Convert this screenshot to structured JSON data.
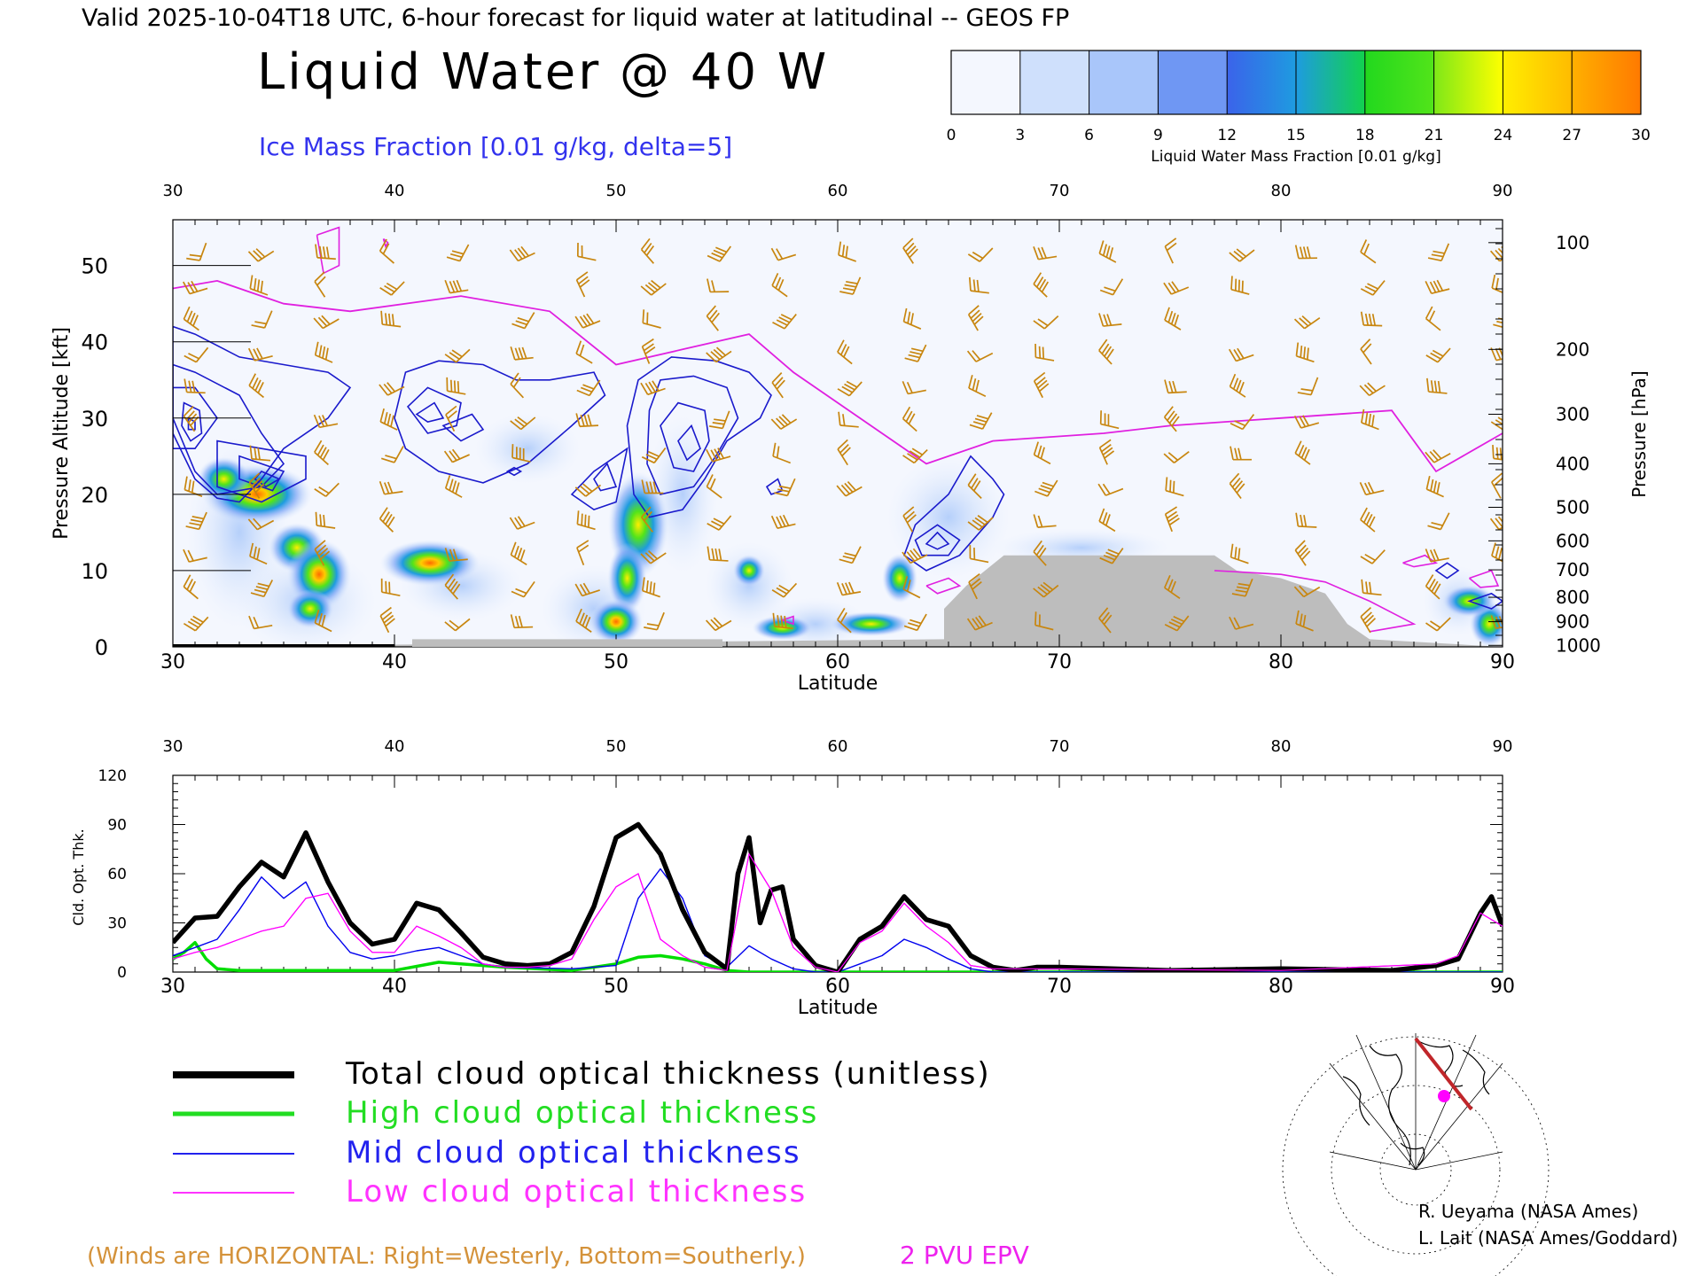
{
  "header": {
    "valid_line": "Valid 2025-10-04T18 UTC, 6-hour forecast for liquid water at latitudinal -- GEOS FP",
    "title": "Liquid Water @ 40 W",
    "subtitle": "Ice Mass Fraction [0.01 g/kg, delta=5]"
  },
  "colorbar": {
    "label": "Liquid Water Mass Fraction [0.01 g/kg]",
    "ticks": [
      "0",
      "3",
      "6",
      "9",
      "12",
      "15",
      "18",
      "21",
      "24",
      "27",
      "30"
    ],
    "colors": [
      "#f2f6fe",
      "#d2e2fc",
      "#aecbfa",
      "#7aa5f6",
      "#3b63ea",
      "#1e9be0",
      "#12d24e",
      "#52e41a",
      "#ffff00",
      "#ffcc00",
      "#ff9900",
      "#ff6a00",
      "#ff1c00"
    ]
  },
  "colors": {
    "ice_contour": "#1a1acc",
    "epv": "#e020e0",
    "wind_barb": "#c8860f",
    "terrain": "#bdbdbd",
    "total": "#000000",
    "high": "#00dd00",
    "mid": "#0000ee",
    "low": "#ff00ff"
  },
  "top_panel": {
    "xlabel": "Latitude",
    "ylabel_left": "Pressure Altitude [kft]",
    "ylabel_right": "Pressure [hPa]",
    "x_ticks": [
      "30",
      "40",
      "50",
      "60",
      "70",
      "80",
      "90"
    ],
    "y_ticks": [
      "0",
      "10",
      "20",
      "30",
      "40",
      "50"
    ],
    "p_ticks": [
      "100",
      "200",
      "300",
      "400",
      "500",
      "600",
      "700",
      "800",
      "900",
      "1000"
    ]
  },
  "chart_data": [
    {
      "type": "heatmap",
      "title": "Liquid Water @ 40 W",
      "subtitle": "Ice Mass Fraction [0.01 g/kg, delta=5]",
      "xlabel": "Latitude",
      "ylabel": "Pressure Altitude [kft]",
      "ylabel_right": "Pressure [hPa]",
      "xlim": [
        30,
        90
      ],
      "ylim": [
        0,
        56
      ],
      "colorbar_range": [
        0,
        30
      ],
      "liquid_water_maxima": [
        {
          "lat": 34.0,
          "alt_kft": 20,
          "value": 24
        },
        {
          "lat": 36.5,
          "alt_kft": 10,
          "value": 27
        },
        {
          "lat": 41.5,
          "alt_kft": 11,
          "value": 29
        },
        {
          "lat": 51.0,
          "alt_kft": 15,
          "value": 19
        },
        {
          "lat": 50.0,
          "alt_kft": 3,
          "value": 24
        },
        {
          "lat": 56.0,
          "alt_kft": 10,
          "value": 16
        },
        {
          "lat": 62.0,
          "alt_kft": 9,
          "value": 17
        },
        {
          "lat": 89.5,
          "alt_kft": 3,
          "value": 16
        }
      ],
      "epv_2pvu_kft": [
        {
          "lat": 30,
          "alt": 47
        },
        {
          "lat": 32,
          "alt": 48
        },
        {
          "lat": 35,
          "alt": 45
        },
        {
          "lat": 38,
          "alt": 44
        },
        {
          "lat": 43,
          "alt": 46
        },
        {
          "lat": 47,
          "alt": 44
        },
        {
          "lat": 50,
          "alt": 37
        },
        {
          "lat": 53,
          "alt": 39
        },
        {
          "lat": 56,
          "alt": 41
        },
        {
          "lat": 58,
          "alt": 36
        },
        {
          "lat": 62,
          "alt": 28
        },
        {
          "lat": 64,
          "alt": 24
        },
        {
          "lat": 67,
          "alt": 27
        },
        {
          "lat": 72,
          "alt": 28
        },
        {
          "lat": 75,
          "alt": 29
        },
        {
          "lat": 80,
          "alt": 30
        },
        {
          "lat": 85,
          "alt": 31
        },
        {
          "lat": 87,
          "alt": 23
        },
        {
          "lat": 90,
          "alt": 28
        }
      ],
      "terrain_kft": [
        {
          "lat": 30,
          "alt": 0
        },
        {
          "lat": 64.8,
          "alt": 1
        },
        {
          "lat": 64.8,
          "alt": 5
        },
        {
          "lat": 65.8,
          "alt": 8
        },
        {
          "lat": 67.5,
          "alt": 12
        },
        {
          "lat": 77,
          "alt": 12
        },
        {
          "lat": 78,
          "alt": 10
        },
        {
          "lat": 80,
          "alt": 9
        },
        {
          "lat": 82,
          "alt": 7
        },
        {
          "lat": 83,
          "alt": 3
        },
        {
          "lat": 84,
          "alt": 1
        },
        {
          "lat": 90,
          "alt": 0
        }
      ]
    },
    {
      "type": "line",
      "xlabel": "Latitude",
      "ylabel": "Cld. Opt. Thk.",
      "xlim": [
        30,
        90
      ],
      "ylim": [
        0,
        120
      ],
      "x_ticks": [
        "30",
        "40",
        "50",
        "60",
        "70",
        "80",
        "90"
      ],
      "y_ticks": [
        "0",
        "30",
        "60",
        "90",
        "120"
      ],
      "series": [
        {
          "name": "Total cloud optical thickness (unitless)",
          "color": "#000000",
          "x": [
            30,
            31,
            32,
            33,
            34,
            35,
            36,
            37,
            38,
            39,
            40,
            41,
            42,
            43,
            44,
            45,
            46,
            47,
            48,
            49,
            50,
            51,
            52,
            53,
            54,
            55,
            55.5,
            56,
            56.5,
            57,
            57.5,
            58,
            59,
            60,
            61,
            62,
            63,
            64,
            65,
            66,
            67,
            68,
            69,
            70,
            75,
            80,
            85,
            87,
            88,
            89,
            89.5,
            90
          ],
          "y": [
            18,
            33,
            34,
            52,
            67,
            58,
            85,
            55,
            30,
            17,
            20,
            42,
            38,
            24,
            9,
            5,
            4,
            5,
            12,
            40,
            82,
            90,
            72,
            38,
            12,
            2,
            60,
            82,
            30,
            50,
            52,
            20,
            4,
            0,
            20,
            28,
            46,
            32,
            28,
            10,
            3,
            1,
            3,
            3,
            1,
            2,
            1,
            4,
            8,
            36,
            46,
            28
          ]
        },
        {
          "name": "High cloud optical thickness",
          "color": "#00dd00",
          "x": [
            30,
            30.5,
            31,
            31.5,
            32,
            33,
            35,
            40,
            42,
            45,
            48,
            50,
            51,
            52,
            53,
            54,
            55,
            56,
            60,
            70,
            90
          ],
          "y": [
            8,
            12,
            18,
            8,
            2,
            1,
            1,
            1,
            6,
            3,
            1,
            5,
            9,
            10,
            8,
            5,
            1,
            0,
            0,
            0,
            0
          ]
        },
        {
          "name": "Mid cloud optical thickness",
          "color": "#0000ee",
          "x": [
            30,
            31,
            32,
            33,
            34,
            35,
            36,
            37,
            38,
            39,
            40,
            41,
            42,
            43,
            44,
            45,
            48,
            50,
            51,
            52,
            53,
            54,
            55,
            56,
            57,
            58,
            59,
            60,
            61,
            62,
            63,
            64,
            65,
            66,
            67,
            70,
            90
          ],
          "y": [
            10,
            15,
            20,
            38,
            58,
            45,
            55,
            28,
            12,
            8,
            10,
            13,
            15,
            10,
            5,
            3,
            2,
            4,
            45,
            63,
            45,
            10,
            3,
            16,
            8,
            2,
            0,
            0,
            5,
            10,
            20,
            15,
            8,
            2,
            0,
            0,
            0
          ]
        },
        {
          "name": "Low cloud optical thickness",
          "color": "#ff00ff",
          "x": [
            30,
            31,
            32,
            33,
            34,
            35,
            36,
            37,
            38,
            39,
            40,
            41,
            42,
            43,
            44,
            45,
            46,
            47,
            48,
            49,
            50,
            51,
            52,
            53,
            54,
            55,
            56,
            57,
            58,
            59,
            60,
            61,
            62,
            63,
            64,
            65,
            66,
            67,
            70,
            80,
            87,
            88,
            89,
            90
          ],
          "y": [
            8,
            12,
            15,
            20,
            25,
            28,
            45,
            48,
            25,
            12,
            12,
            28,
            22,
            15,
            5,
            3,
            3,
            4,
            8,
            32,
            52,
            60,
            20,
            10,
            3,
            1,
            72,
            50,
            15,
            3,
            0,
            18,
            25,
            42,
            28,
            18,
            4,
            2,
            2,
            1,
            5,
            10,
            36,
            28
          ]
        }
      ]
    }
  ],
  "bottom_panel": {
    "ylabel": "Cld. Opt. Thk.",
    "xlabel": "Latitude",
    "x_ticks": [
      "30",
      "40",
      "50",
      "60",
      "70",
      "80",
      "90"
    ],
    "y_ticks": [
      "0",
      "30",
      "60",
      "90",
      "120"
    ]
  },
  "legend": [
    {
      "label": "Total cloud optical thickness (unitless)",
      "color": "#000000"
    },
    {
      "label": "High cloud optical thickness",
      "color": "#22dd22"
    },
    {
      "label": "Mid cloud optical thickness",
      "color": "#2222ee"
    },
    {
      "label": "Low cloud optical thickness",
      "color": "#ff33ff"
    }
  ],
  "footer": {
    "winds_note": "(Winds are HORIZONTAL: Right=Westerly, Bottom=Southerly.)",
    "epv_label": "2 PVU EPV",
    "credit1": "R. Ueyama (NASA Ames)",
    "credit2": "L. Lait (NASA Ames/Goddard)"
  }
}
